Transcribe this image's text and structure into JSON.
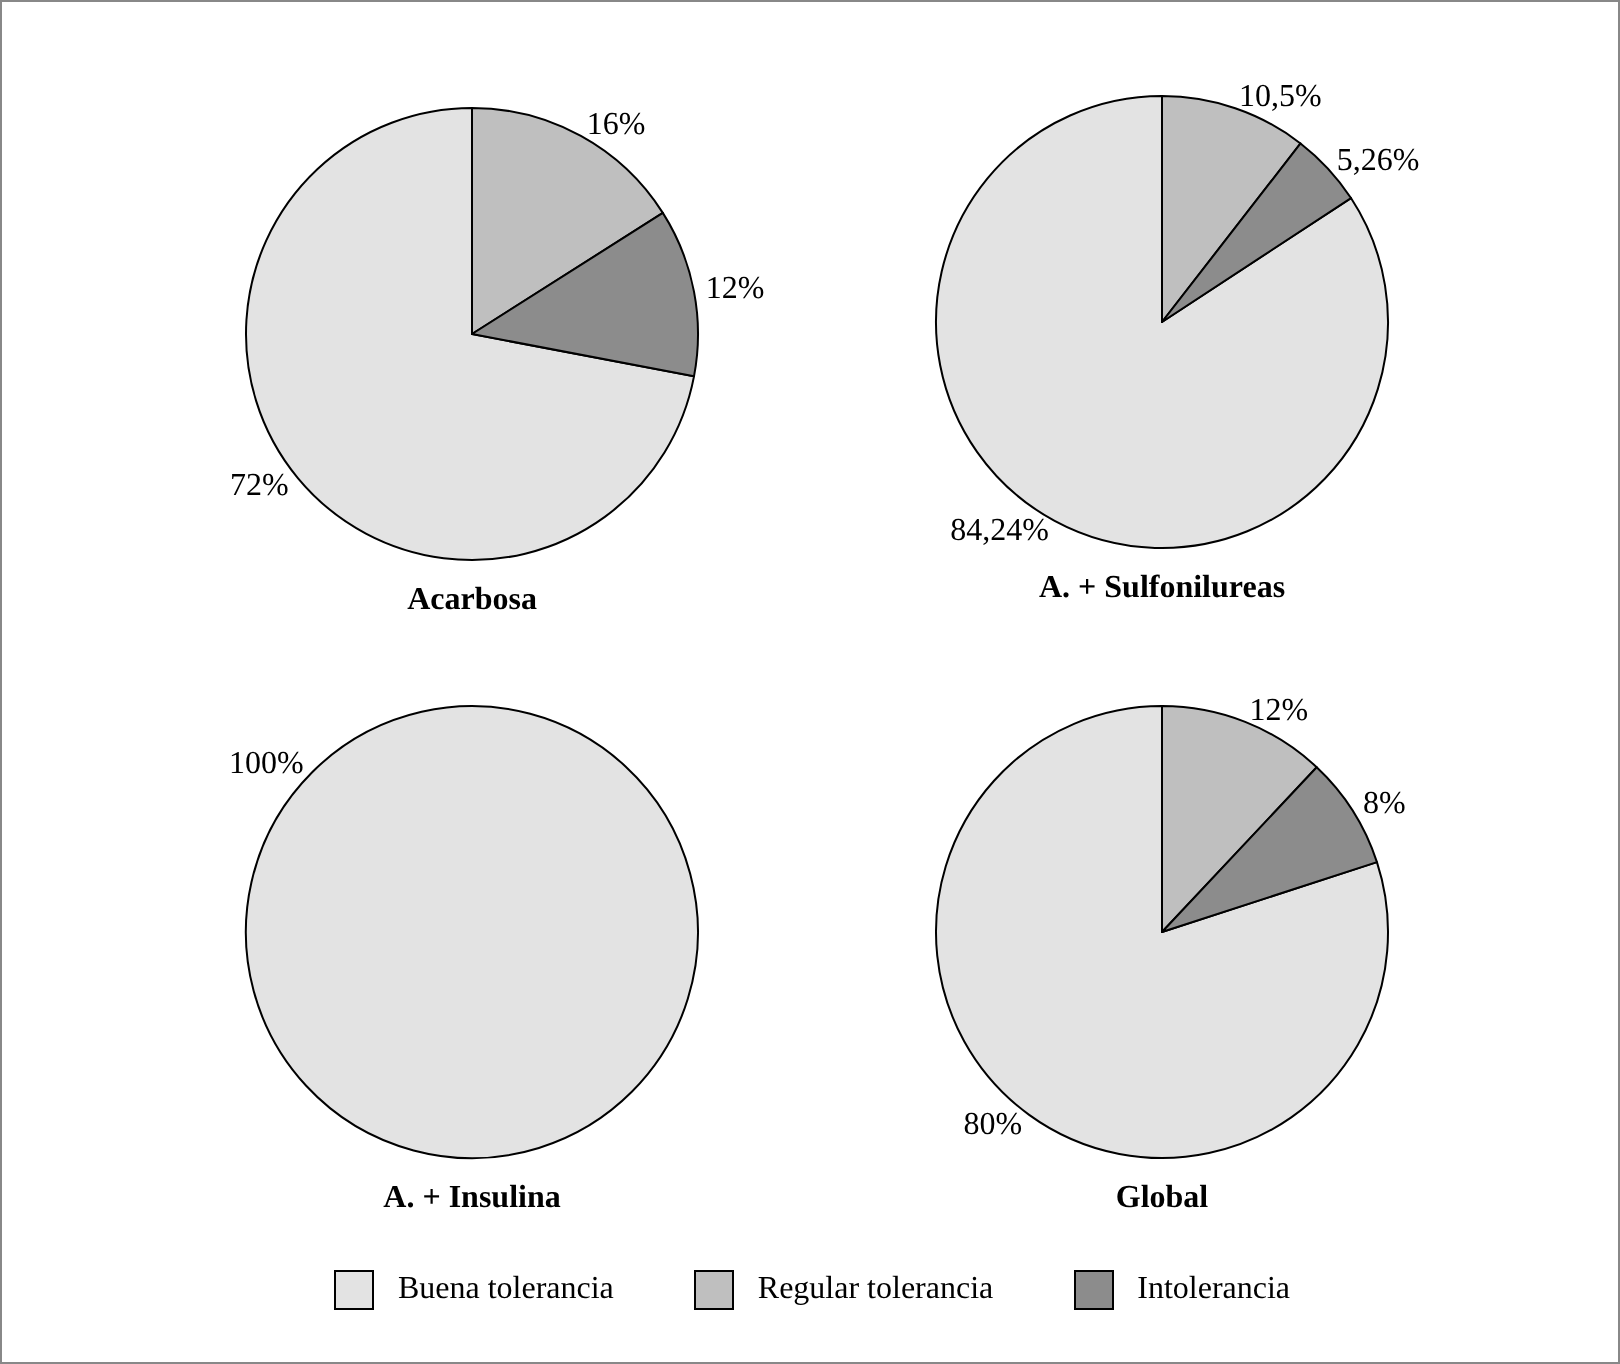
{
  "chart_data": [
    {
      "type": "pie",
      "title": "Acarbosa",
      "categories": [
        "Buena tolerancia",
        "Regular tolerancia",
        "Intolerancia"
      ],
      "values": [
        72,
        16,
        12
      ],
      "colors": [
        "#e3e3e3",
        "#bfbfbf",
        "#8c8c8c"
      ],
      "value_labels": [
        "72%",
        "16%",
        "12%"
      ],
      "legend": "bottom"
    },
    {
      "type": "pie",
      "title": "A. + Sulfonilureas",
      "categories": [
        null,
        null,
        null
      ],
      "values": [
        84.24,
        10.5,
        5.26
      ],
      "colors": [
        "#e3e3e3",
        "#bfbfbf",
        "#8c8c8c"
      ],
      "value_labels": [
        "84,24%",
        "10,5%",
        "5,26%"
      ]
    },
    {
      "type": "pie",
      "title": "A. + Insulina",
      "categories": [
        null
      ],
      "values": [
        100
      ],
      "colors": [
        "#e3e3e3"
      ],
      "value_labels": [
        "100%"
      ]
    },
    {
      "type": "pie",
      "title": "Global",
      "categories": [
        null,
        null,
        null
      ],
      "values": [
        80,
        12,
        8
      ],
      "colors": [
        "#e3e3e3",
        "#bfbfbf",
        "#8c8c8c"
      ],
      "value_labels": [
        "80%",
        "12%",
        "8%"
      ]
    }
  ]
}
